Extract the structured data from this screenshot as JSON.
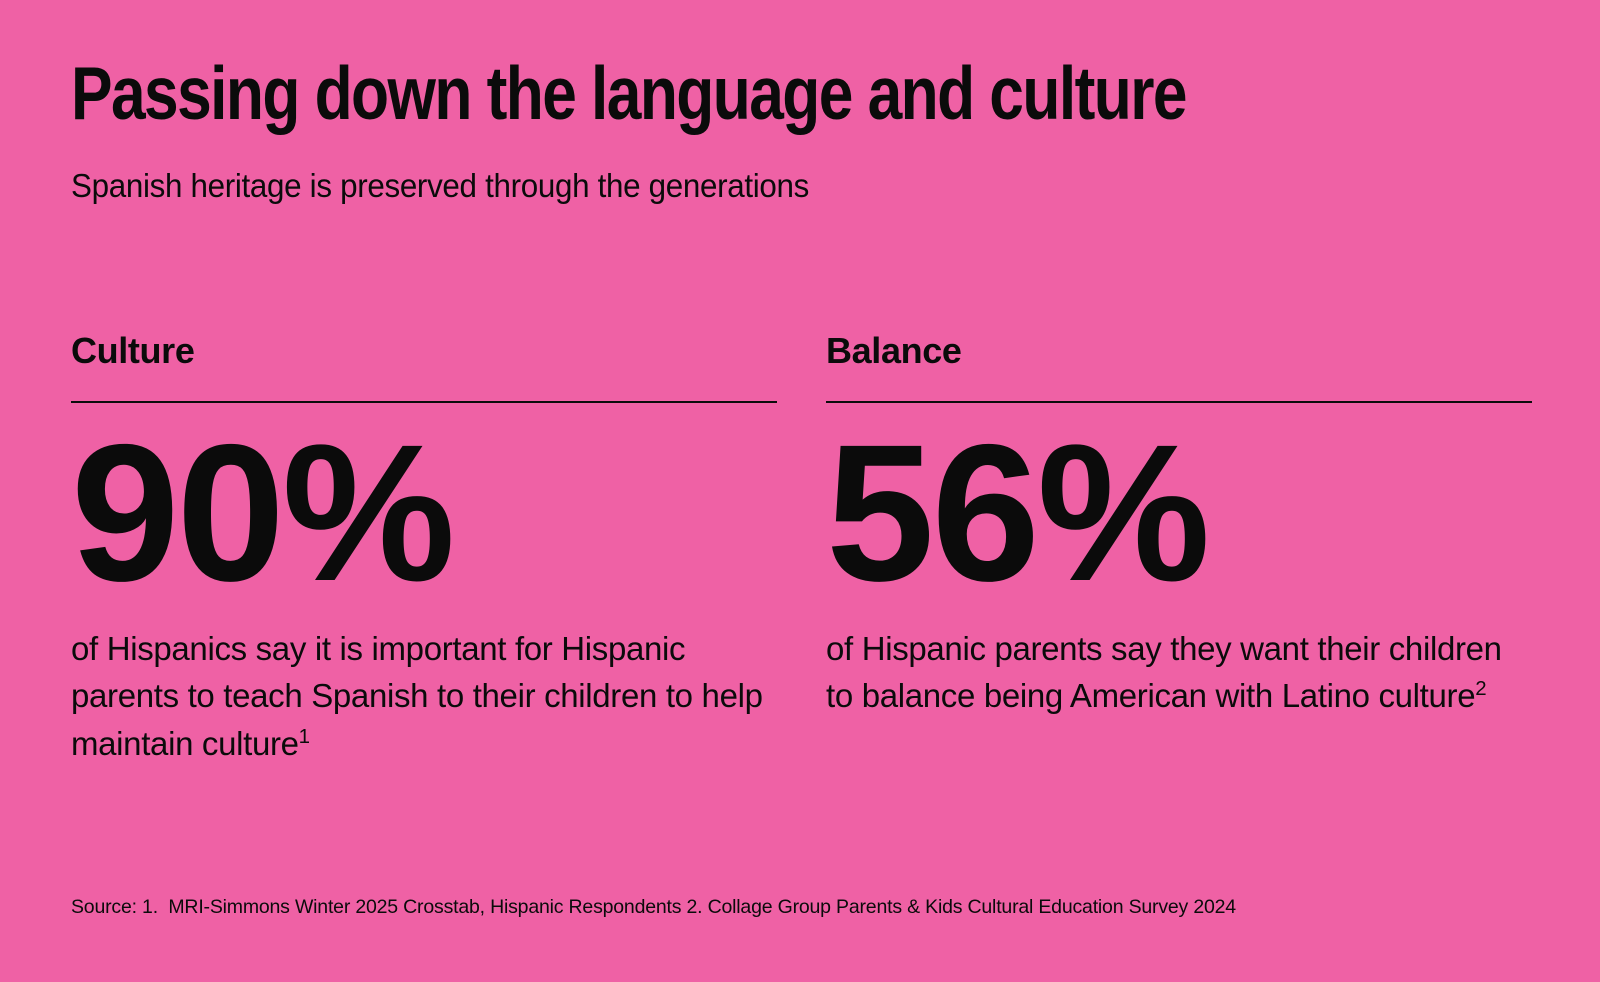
{
  "slide": {
    "title": "Passing down the language and culture",
    "subtitle": "Spanish heritage is preserved through the generations",
    "background_color": "#ef61a5",
    "text_color": "#0b0b0b"
  },
  "stats": [
    {
      "label": "Culture",
      "value": "90%",
      "description": "of Hispanics say it is important for Hispanic parents to teach Spanish to their children to help maintain culture",
      "footnote_marker": "1"
    },
    {
      "label": "Balance",
      "value": "56%",
      "description": "of Hispanic parents say they want their children to balance being American with Latino culture",
      "footnote_marker": "2"
    }
  ],
  "source": "Source: 1.  MRI-Simmons Winter 2025 Crosstab, Hispanic Respondents 2. Collage Group Parents & Kids Cultural Education Survey 2024"
}
